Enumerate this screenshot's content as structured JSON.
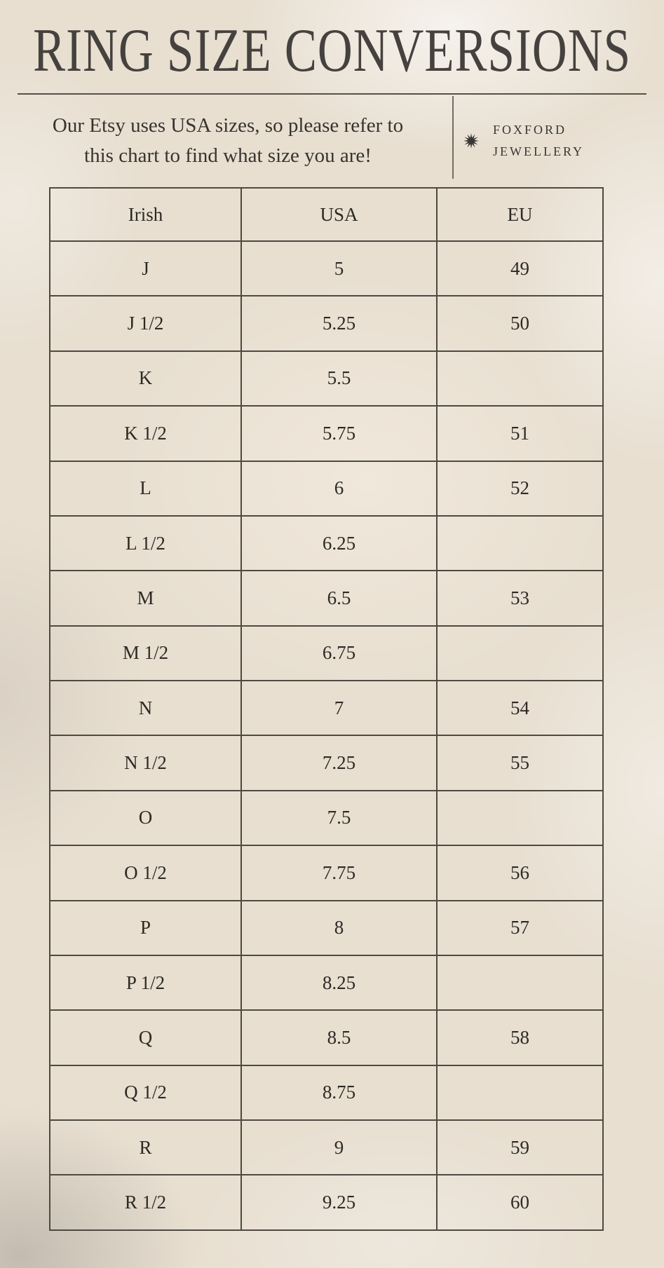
{
  "page": {
    "title": "RING SIZE CONVERSIONS",
    "subtitle_line1": "Our Etsy uses USA sizes, so please refer to",
    "subtitle_line2": "this chart to find what size you are!",
    "brand_name_line1": "FOXFORD",
    "brand_name_line2": "JEWELLERY",
    "brand_icon": "starburst-icon"
  },
  "colors": {
    "background": "#e8dfd1",
    "title_text": "#45413e",
    "body_text": "#2d2a25",
    "table_border": "#4e4941"
  },
  "chart_data": {
    "type": "table",
    "title": "RING SIZE CONVERSIONS",
    "columns": [
      "Irish",
      "USA",
      "EU"
    ],
    "rows": [
      [
        "J",
        "5",
        "49"
      ],
      [
        "J 1/2",
        "5.25",
        "50"
      ],
      [
        "K",
        "5.5",
        ""
      ],
      [
        "K 1/2",
        "5.75",
        "51"
      ],
      [
        "L",
        "6",
        "52"
      ],
      [
        "L 1/2",
        "6.25",
        ""
      ],
      [
        "M",
        "6.5",
        "53"
      ],
      [
        "M 1/2",
        "6.75",
        ""
      ],
      [
        "N",
        "7",
        "54"
      ],
      [
        "N 1/2",
        "7.25",
        "55"
      ],
      [
        "O",
        "7.5",
        ""
      ],
      [
        "O 1/2",
        "7.75",
        "56"
      ],
      [
        "P",
        "8",
        "57"
      ],
      [
        "P 1/2",
        "8.25",
        ""
      ],
      [
        "Q",
        "8.5",
        "58"
      ],
      [
        "Q 1/2",
        "8.75",
        ""
      ],
      [
        "R",
        "9",
        "59"
      ],
      [
        "R 1/2",
        "9.25",
        "60"
      ]
    ]
  }
}
